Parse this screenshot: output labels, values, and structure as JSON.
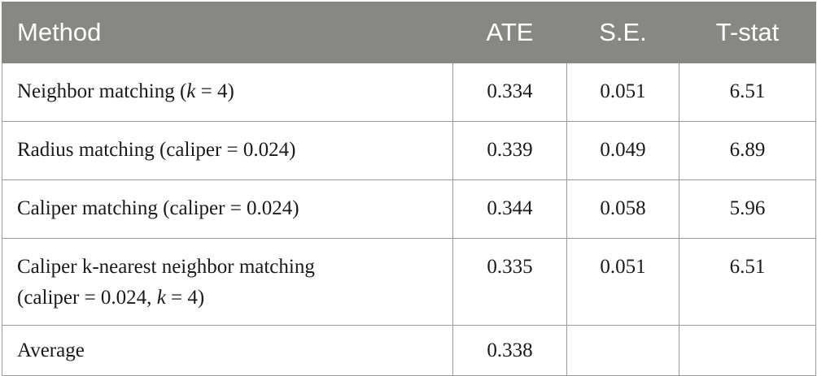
{
  "header": {
    "method": "Method",
    "ate": "ATE",
    "se": "S.E.",
    "tstat": "T-stat"
  },
  "rows": [
    {
      "method_pre": "Neighbor matching (",
      "method_k": "k",
      "method_post": " = 4)",
      "ate": "0.334",
      "se": "0.051",
      "tstat": "6.51"
    },
    {
      "method": "Radius matching (caliper = 0.024)",
      "ate": "0.339",
      "se": "0.049",
      "tstat": "6.89"
    },
    {
      "method": "Caliper matching (caliper = 0.024)",
      "ate": "0.344",
      "se": "0.058",
      "tstat": "5.96"
    },
    {
      "method_line1": "Caliper k-nearest neighbor matching",
      "method_line2_pre": "(caliper = 0.024, ",
      "method_line2_k": "k",
      "method_line2_post": " = 4)",
      "ate": "0.335",
      "se": "0.051",
      "tstat": "6.51"
    },
    {
      "method": "Average",
      "ate": "0.338",
      "se": "",
      "tstat": ""
    }
  ]
}
